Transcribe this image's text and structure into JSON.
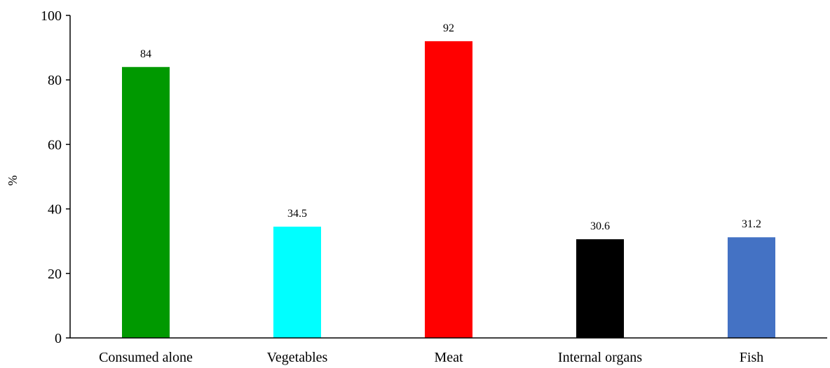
{
  "chart_data": {
    "type": "bar",
    "categories": [
      "Consumed alone",
      "Vegetables",
      "Meat",
      "Internal organs",
      "Fish"
    ],
    "values": [
      84,
      34.5,
      92,
      30.6,
      31.2
    ],
    "value_labels": [
      "84",
      "34.5",
      "92",
      "30.6",
      "31.2"
    ],
    "colors": [
      "#009900",
      "#00FFFF",
      "#FF0000",
      "#000000",
      "#4472C4"
    ],
    "title": "",
    "xlabel": "",
    "ylabel": "%",
    "ylim": [
      0,
      100
    ],
    "yticks": [
      0,
      20,
      40,
      60,
      80,
      100
    ],
    "ytick_labels": [
      "0",
      "20",
      "40",
      "60",
      "80",
      "100"
    ],
    "grid": false,
    "legend": "none"
  }
}
